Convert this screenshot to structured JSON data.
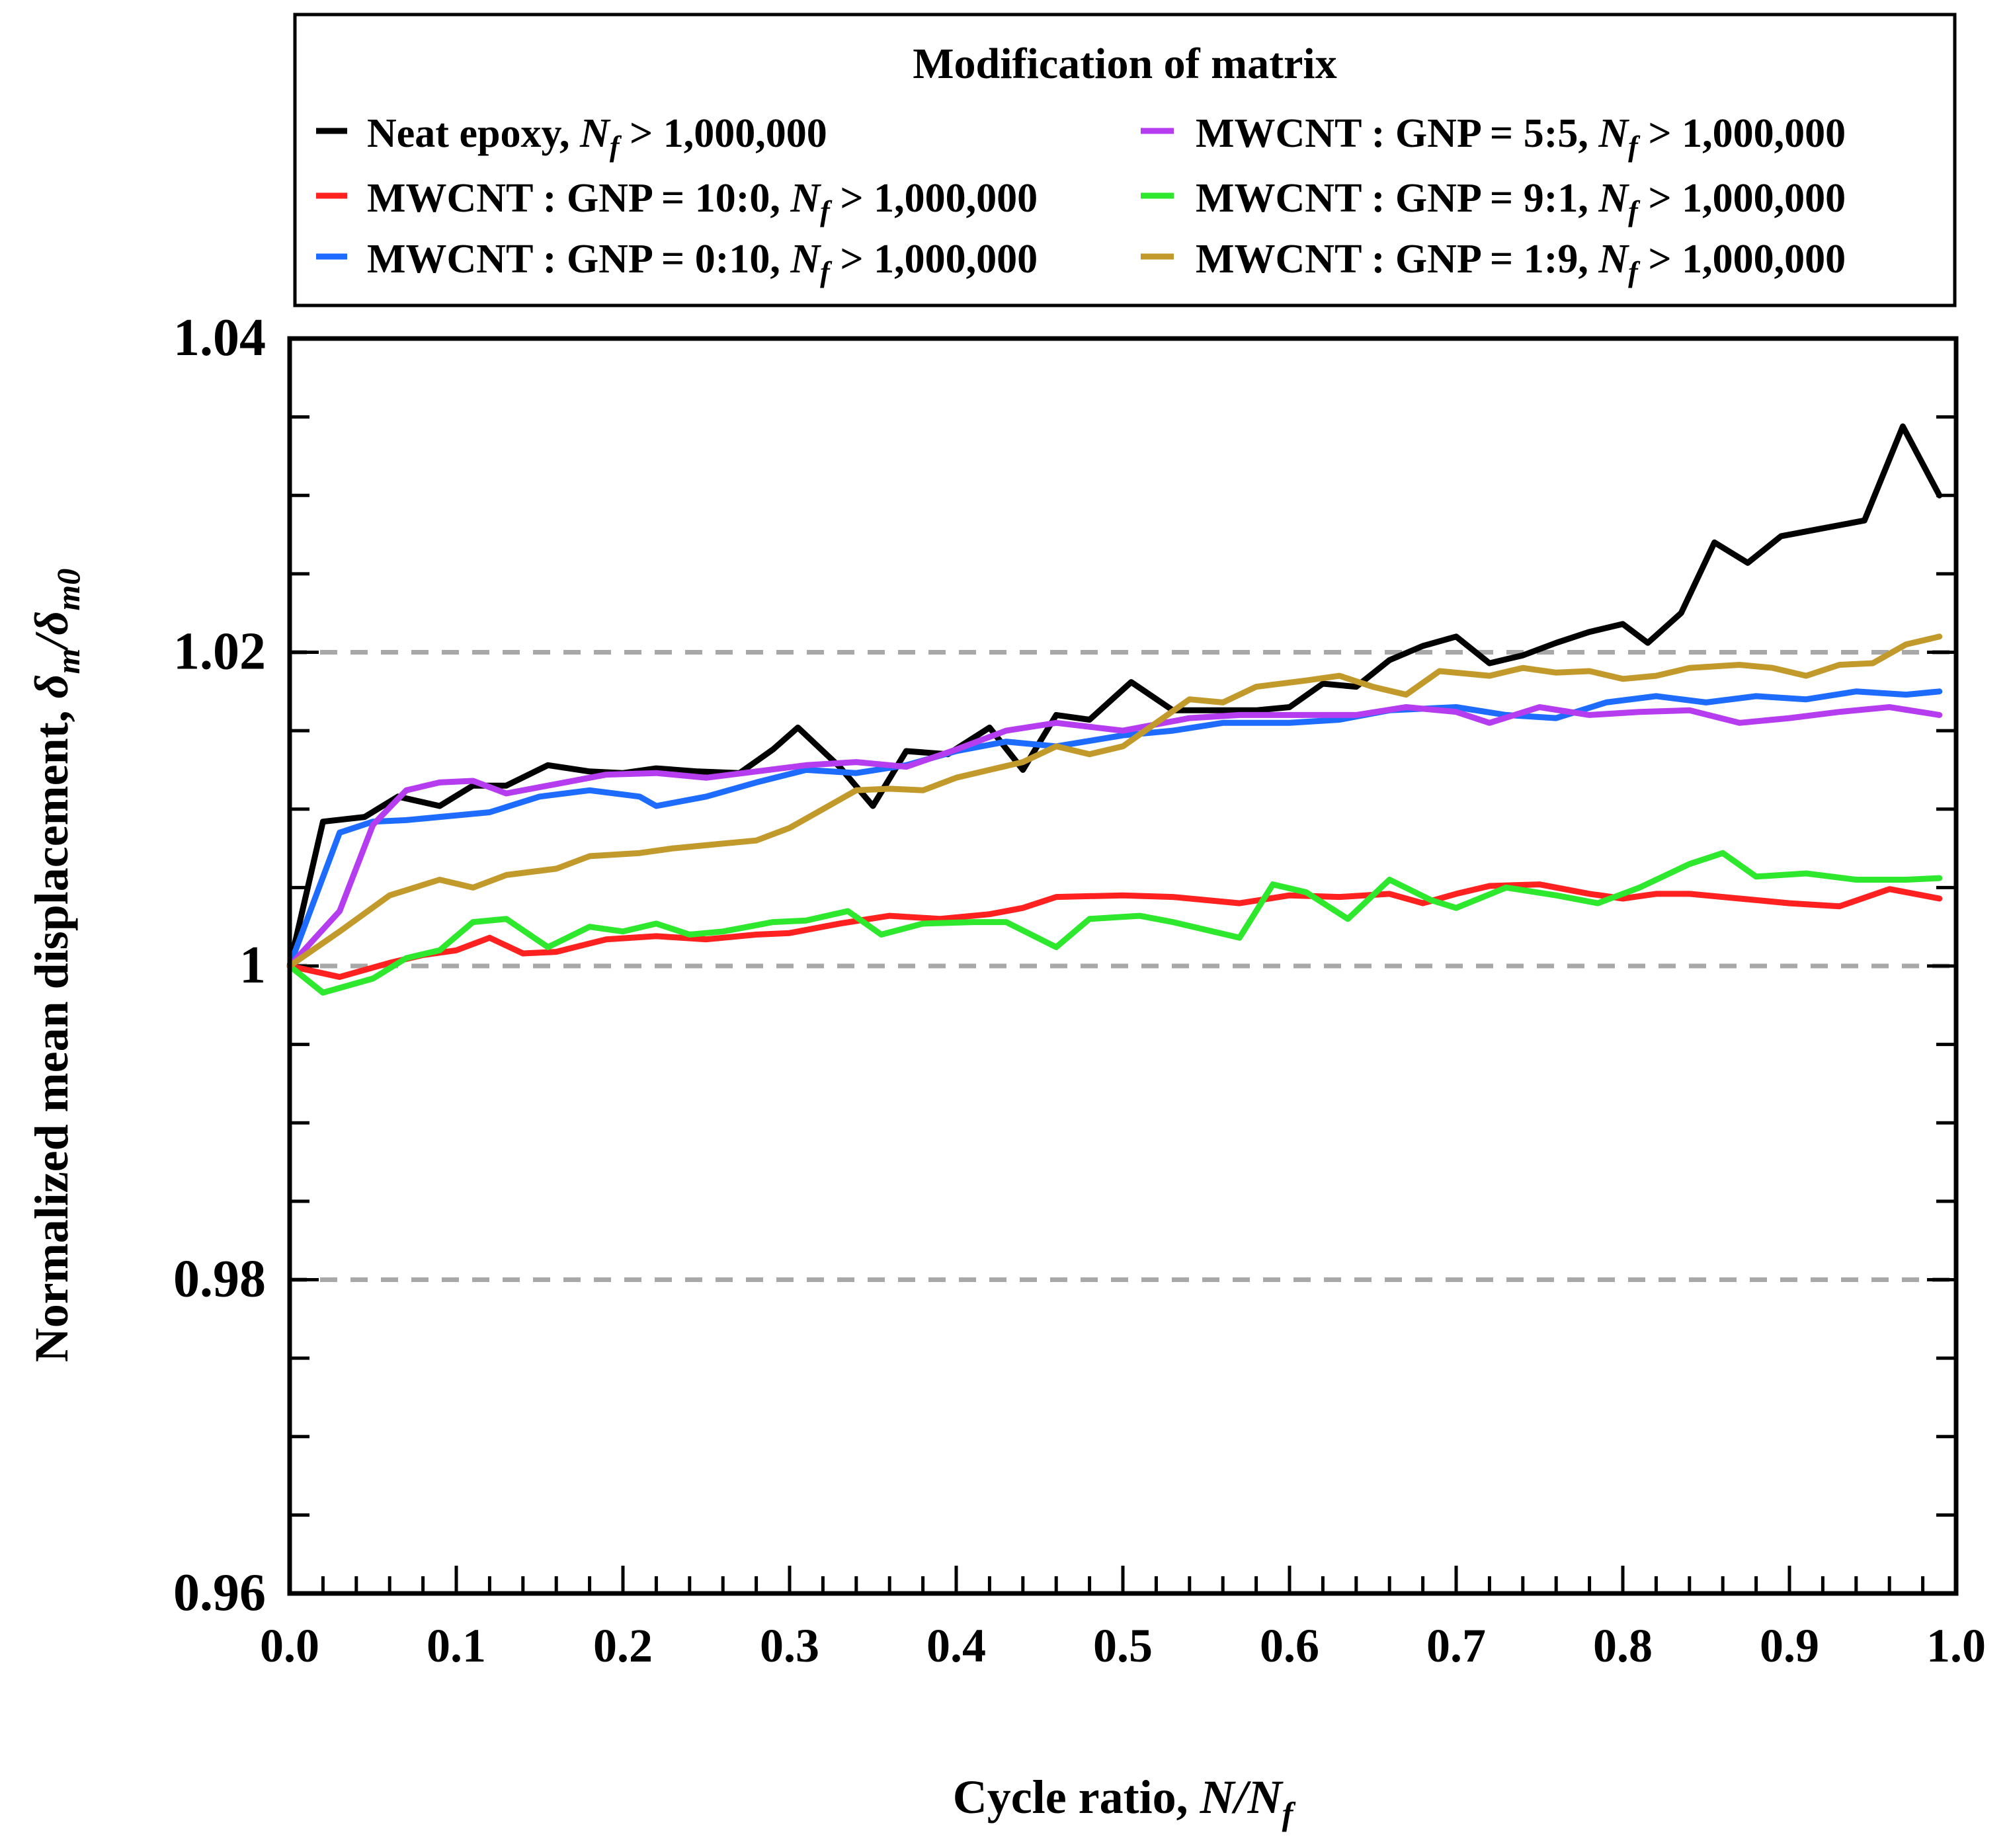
{
  "chart_data": {
    "type": "line",
    "legend_title": "Modification of matrix",
    "xlabel_prefix": "Cycle ratio, ",
    "xlabel_var": "N/N",
    "xlabel_sub": "f",
    "ylabel_prefix": "Normalized mean displacement, ",
    "ylabel_d": "δ",
    "ylabel_sub1": "m",
    "ylabel_slash": "/",
    "ylabel_sub2": "m0",
    "xlim": [
      0.0,
      1.0
    ],
    "ylim": [
      0.96,
      1.04
    ],
    "xticks": [
      "0.0",
      "0.1",
      "0.2",
      "0.3",
      "0.4",
      "0.5",
      "0.6",
      "0.7",
      "0.8",
      "0.9",
      "1.0"
    ],
    "yticks": [
      "0.96",
      "0.98",
      "1",
      "1.02",
      "1.04"
    ],
    "reference_lines": [
      0.98,
      1.0,
      1.02
    ],
    "series": [
      {
        "name": "Neat epoxy",
        "label_suffix": " > 1,000,000",
        "color": "#000000",
        "points": [
          [
            0.0,
            1.0
          ],
          [
            0.02,
            1.0092
          ],
          [
            0.045,
            1.0095
          ],
          [
            0.065,
            1.0108
          ],
          [
            0.09,
            1.0102
          ],
          [
            0.11,
            1.0115
          ],
          [
            0.13,
            1.0115
          ],
          [
            0.155,
            1.0128
          ],
          [
            0.18,
            1.0124
          ],
          [
            0.2,
            1.0123
          ],
          [
            0.22,
            1.0126
          ],
          [
            0.245,
            1.0124
          ],
          [
            0.27,
            1.0123
          ],
          [
            0.29,
            1.0138
          ],
          [
            0.305,
            1.0152
          ],
          [
            0.33,
            1.0127
          ],
          [
            0.35,
            1.0102
          ],
          [
            0.37,
            1.0137
          ],
          [
            0.395,
            1.0135
          ],
          [
            0.42,
            1.0152
          ],
          [
            0.44,
            1.0125
          ],
          [
            0.46,
            1.016
          ],
          [
            0.48,
            1.0157
          ],
          [
            0.505,
            1.0181
          ],
          [
            0.53,
            1.0163
          ],
          [
            0.555,
            1.0163
          ],
          [
            0.58,
            1.0163
          ],
          [
            0.6,
            1.0165
          ],
          [
            0.62,
            1.018
          ],
          [
            0.64,
            1.0178
          ],
          [
            0.66,
            1.0195
          ],
          [
            0.68,
            1.0204
          ],
          [
            0.7,
            1.021
          ],
          [
            0.72,
            1.0193
          ],
          [
            0.74,
            1.0198
          ],
          [
            0.76,
            1.0206
          ],
          [
            0.78,
            1.0213
          ],
          [
            0.8,
            1.0218
          ],
          [
            0.815,
            1.0206
          ],
          [
            0.835,
            1.0225
          ],
          [
            0.855,
            1.027
          ],
          [
            0.875,
            1.0257
          ],
          [
            0.895,
            1.0274
          ],
          [
            0.92,
            1.0279
          ],
          [
            0.945,
            1.0284
          ],
          [
            0.968,
            1.0344
          ],
          [
            0.99,
            1.03
          ]
        ]
      },
      {
        "name": "MWCNT : GNP = 10:0",
        "label_suffix": " > 1,000,000",
        "color": "#ff2020",
        "points": [
          [
            0.0,
            1.0
          ],
          [
            0.03,
            0.9993
          ],
          [
            0.06,
            1.0002
          ],
          [
            0.08,
            1.0007
          ],
          [
            0.1,
            1.001
          ],
          [
            0.12,
            1.0018
          ],
          [
            0.14,
            1.0008
          ],
          [
            0.16,
            1.0009
          ],
          [
            0.19,
            1.0017
          ],
          [
            0.22,
            1.0019
          ],
          [
            0.25,
            1.0017
          ],
          [
            0.28,
            1.002
          ],
          [
            0.3,
            1.0021
          ],
          [
            0.33,
            1.0027
          ],
          [
            0.36,
            1.0032
          ],
          [
            0.39,
            1.003
          ],
          [
            0.42,
            1.0033
          ],
          [
            0.44,
            1.0037
          ],
          [
            0.46,
            1.0044
          ],
          [
            0.5,
            1.0045
          ],
          [
            0.53,
            1.0044
          ],
          [
            0.57,
            1.004
          ],
          [
            0.6,
            1.0045
          ],
          [
            0.63,
            1.0044
          ],
          [
            0.66,
            1.0046
          ],
          [
            0.68,
            1.004
          ],
          [
            0.7,
            1.0046
          ],
          [
            0.72,
            1.0051
          ],
          [
            0.75,
            1.0052
          ],
          [
            0.78,
            1.0046
          ],
          [
            0.8,
            1.0043
          ],
          [
            0.82,
            1.0046
          ],
          [
            0.84,
            1.0046
          ],
          [
            0.87,
            1.0043
          ],
          [
            0.9,
            1.004
          ],
          [
            0.93,
            1.0038
          ],
          [
            0.96,
            1.0049
          ],
          [
            0.99,
            1.0043
          ]
        ]
      },
      {
        "name": "MWCNT : GNP = 0:10",
        "label_suffix": " > 1,000,000",
        "color": "#1e6cff",
        "points": [
          [
            0.0,
            1.0
          ],
          [
            0.03,
            1.0085
          ],
          [
            0.05,
            1.0092
          ],
          [
            0.07,
            1.0093
          ],
          [
            0.09,
            1.0095
          ],
          [
            0.12,
            1.0098
          ],
          [
            0.15,
            1.0108
          ],
          [
            0.18,
            1.0112
          ],
          [
            0.21,
            1.0108
          ],
          [
            0.22,
            1.0102
          ],
          [
            0.25,
            1.0108
          ],
          [
            0.28,
            1.0117
          ],
          [
            0.31,
            1.0125
          ],
          [
            0.34,
            1.0123
          ],
          [
            0.37,
            1.0128
          ],
          [
            0.4,
            1.0137
          ],
          [
            0.43,
            1.0143
          ],
          [
            0.46,
            1.014
          ],
          [
            0.5,
            1.0147
          ],
          [
            0.53,
            1.015
          ],
          [
            0.56,
            1.0155
          ],
          [
            0.6,
            1.0155
          ],
          [
            0.63,
            1.0157
          ],
          [
            0.66,
            1.0163
          ],
          [
            0.7,
            1.0165
          ],
          [
            0.73,
            1.016
          ],
          [
            0.76,
            1.0158
          ],
          [
            0.79,
            1.0168
          ],
          [
            0.82,
            1.0172
          ],
          [
            0.85,
            1.0168
          ],
          [
            0.88,
            1.0172
          ],
          [
            0.91,
            1.017
          ],
          [
            0.94,
            1.0175
          ],
          [
            0.97,
            1.0173
          ],
          [
            0.99,
            1.0175
          ]
        ]
      },
      {
        "name": "MWCNT : GNP = 5:5",
        "label_suffix": " > 1,000,000",
        "color": "#b63cf0",
        "points": [
          [
            0.0,
            1.0
          ],
          [
            0.03,
            1.0035
          ],
          [
            0.05,
            1.009
          ],
          [
            0.07,
            1.0112
          ],
          [
            0.09,
            1.0117
          ],
          [
            0.11,
            1.0118
          ],
          [
            0.13,
            1.011
          ],
          [
            0.16,
            1.0116
          ],
          [
            0.19,
            1.0122
          ],
          [
            0.22,
            1.0123
          ],
          [
            0.25,
            1.012
          ],
          [
            0.28,
            1.0124
          ],
          [
            0.31,
            1.0128
          ],
          [
            0.34,
            1.013
          ],
          [
            0.37,
            1.0127
          ],
          [
            0.4,
            1.0138
          ],
          [
            0.43,
            1.015
          ],
          [
            0.46,
            1.0155
          ],
          [
            0.5,
            1.015
          ],
          [
            0.54,
            1.0158
          ],
          [
            0.57,
            1.016
          ],
          [
            0.6,
            1.016
          ],
          [
            0.64,
            1.016
          ],
          [
            0.67,
            1.0165
          ],
          [
            0.7,
            1.0162
          ],
          [
            0.72,
            1.0155
          ],
          [
            0.75,
            1.0165
          ],
          [
            0.78,
            1.016
          ],
          [
            0.81,
            1.0162
          ],
          [
            0.84,
            1.0163
          ],
          [
            0.87,
            1.0155
          ],
          [
            0.9,
            1.0158
          ],
          [
            0.93,
            1.0162
          ],
          [
            0.96,
            1.0165
          ],
          [
            0.99,
            1.016
          ]
        ]
      },
      {
        "name": "MWCNT : GNP = 9:1",
        "label_suffix": " > 1,000,000",
        "color": "#2ee82e",
        "points": [
          [
            0.0,
            1.0
          ],
          [
            0.02,
            0.9983
          ],
          [
            0.05,
            0.9992
          ],
          [
            0.07,
            1.0005
          ],
          [
            0.09,
            1.001
          ],
          [
            0.11,
            1.0028
          ],
          [
            0.13,
            1.003
          ],
          [
            0.155,
            1.0012
          ],
          [
            0.18,
            1.0025
          ],
          [
            0.2,
            1.0022
          ],
          [
            0.22,
            1.0027
          ],
          [
            0.24,
            1.002
          ],
          [
            0.26,
            1.0022
          ],
          [
            0.29,
            1.0028
          ],
          [
            0.31,
            1.0029
          ],
          [
            0.335,
            1.0035
          ],
          [
            0.355,
            1.002
          ],
          [
            0.38,
            1.0027
          ],
          [
            0.41,
            1.0028
          ],
          [
            0.43,
            1.0028
          ],
          [
            0.46,
            1.0012
          ],
          [
            0.48,
            1.003
          ],
          [
            0.51,
            1.0032
          ],
          [
            0.53,
            1.0028
          ],
          [
            0.57,
            1.0018
          ],
          [
            0.59,
            1.0052
          ],
          [
            0.61,
            1.0047
          ],
          [
            0.635,
            1.003
          ],
          [
            0.66,
            1.0055
          ],
          [
            0.685,
            1.0042
          ],
          [
            0.7,
            1.0037
          ],
          [
            0.73,
            1.005
          ],
          [
            0.76,
            1.0045
          ],
          [
            0.785,
            1.004
          ],
          [
            0.81,
            1.005
          ],
          [
            0.84,
            1.0065
          ],
          [
            0.86,
            1.0072
          ],
          [
            0.88,
            1.0057
          ],
          [
            0.91,
            1.0059
          ],
          [
            0.94,
            1.0055
          ],
          [
            0.97,
            1.0055
          ],
          [
            0.99,
            1.0056
          ]
        ]
      },
      {
        "name": "MWCNT : GNP = 1:9",
        "label_suffix": " > 1,000,000",
        "color": "#c29a2c",
        "points": [
          [
            0.0,
            1.0
          ],
          [
            0.03,
            1.0022
          ],
          [
            0.06,
            1.0045
          ],
          [
            0.09,
            1.0055
          ],
          [
            0.11,
            1.005
          ],
          [
            0.13,
            1.0058
          ],
          [
            0.16,
            1.0062
          ],
          [
            0.18,
            1.007
          ],
          [
            0.21,
            1.0072
          ],
          [
            0.23,
            1.0075
          ],
          [
            0.26,
            1.0078
          ],
          [
            0.28,
            1.008
          ],
          [
            0.3,
            1.0088
          ],
          [
            0.32,
            1.01
          ],
          [
            0.34,
            1.0112
          ],
          [
            0.36,
            1.0113
          ],
          [
            0.38,
            1.0112
          ],
          [
            0.4,
            1.012
          ],
          [
            0.42,
            1.0125
          ],
          [
            0.44,
            1.013
          ],
          [
            0.46,
            1.014
          ],
          [
            0.48,
            1.0135
          ],
          [
            0.5,
            1.014
          ],
          [
            0.52,
            1.0155
          ],
          [
            0.54,
            1.017
          ],
          [
            0.56,
            1.0168
          ],
          [
            0.58,
            1.0178
          ],
          [
            0.61,
            1.0182
          ],
          [
            0.63,
            1.0185
          ],
          [
            0.65,
            1.0178
          ],
          [
            0.67,
            1.0173
          ],
          [
            0.69,
            1.0188
          ],
          [
            0.72,
            1.0185
          ],
          [
            0.74,
            1.019
          ],
          [
            0.76,
            1.0187
          ],
          [
            0.78,
            1.0188
          ],
          [
            0.8,
            1.0183
          ],
          [
            0.82,
            1.0185
          ],
          [
            0.84,
            1.019
          ],
          [
            0.87,
            1.0192
          ],
          [
            0.89,
            1.019
          ],
          [
            0.91,
            1.0185
          ],
          [
            0.93,
            1.0192
          ],
          [
            0.95,
            1.0193
          ],
          [
            0.97,
            1.0205
          ],
          [
            0.99,
            1.021
          ]
        ]
      }
    ]
  }
}
